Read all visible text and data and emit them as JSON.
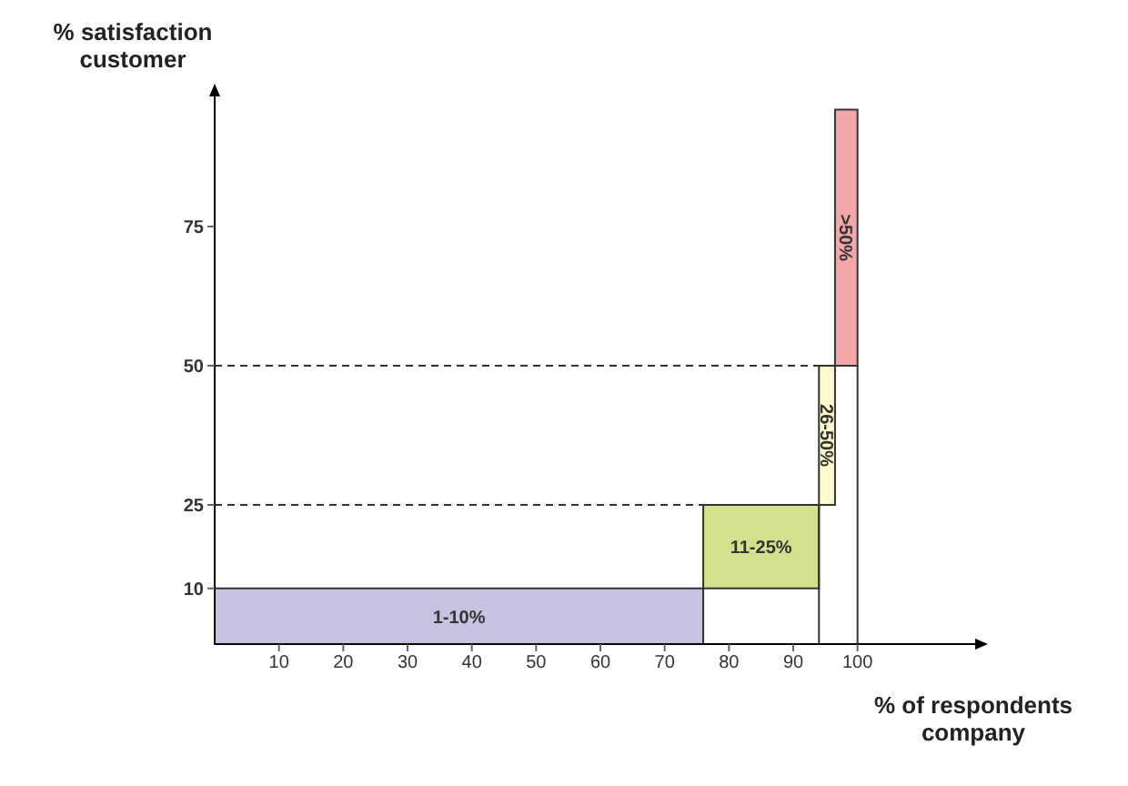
{
  "chart_data": {
    "type": "histogram",
    "xlabel": "% of respondents company",
    "ylabel": "% satisfaction customer",
    "categories": [
      "1-10%",
      "11-25%",
      "26-50%",
      ">50%"
    ],
    "bins": [
      0,
      76,
      94,
      96.5,
      100
    ],
    "values": [
      10,
      15,
      25,
      46
    ],
    "base": [
      0,
      10,
      25,
      50
    ],
    "colors": [
      "#c5c3e0",
      "#d4e08a",
      "#fff9cc",
      "#f4a7a9"
    ],
    "xlim": [
      0,
      120
    ],
    "ylim": [
      0,
      100
    ],
    "xticks": [
      10,
      20,
      30,
      40,
      50,
      60,
      70,
      80,
      90,
      100
    ],
    "yticks": [
      10,
      25,
      50,
      75
    ],
    "ref_lines": [
      {
        "axis": "y",
        "value": 25,
        "line_style": "dashed"
      },
      {
        "axis": "y",
        "value": 50,
        "line_style": "dashed"
      },
      {
        "axis": "x",
        "value": 94,
        "line_style": "solid"
      },
      {
        "axis": "x",
        "value": 100,
        "line_style": "solid"
      }
    ]
  }
}
